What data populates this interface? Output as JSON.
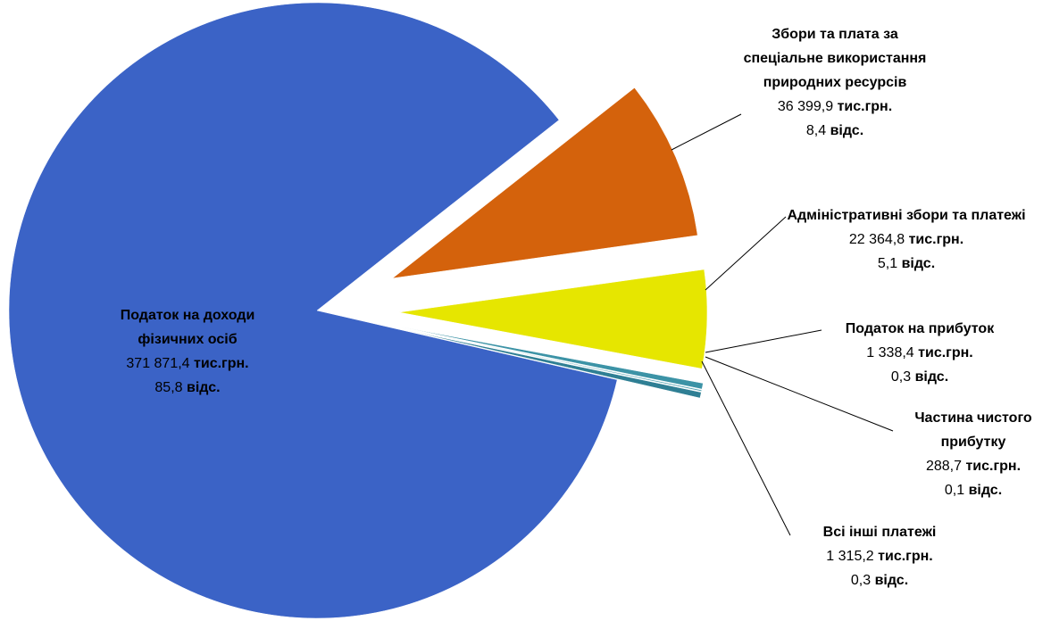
{
  "chart_data": {
    "type": "pie",
    "categories": [
      "Податок на доходи фізичних осіб",
      "Збори та плата за спеціальне використання природних ресурсів",
      "Адміністративні збори та платежі",
      "Податок на прибуток",
      "Частина чистого прибутку",
      "Всі інші платежі"
    ],
    "values": [
      371871.4,
      36399.9,
      22364.8,
      1338.4,
      288.7,
      1315.2
    ],
    "value_labels": [
      "371 871,4",
      "36 399,9",
      "22 364,8",
      "1 338,4",
      "288,7",
      "1 315,2"
    ],
    "unit": "тис.грн.",
    "shares": [
      85.8,
      8.4,
      5.1,
      0.3,
      0.1,
      0.3
    ],
    "share_labels": [
      "85,8",
      "8,4",
      "5,1",
      "0,3",
      "0,1",
      "0,3"
    ],
    "share_unit": "відс.",
    "colors": [
      "#3b63c6",
      "#d4620c",
      "#e6e600",
      "#3c93a6",
      "#4fa0b0",
      "#2f7f94"
    ]
  }
}
